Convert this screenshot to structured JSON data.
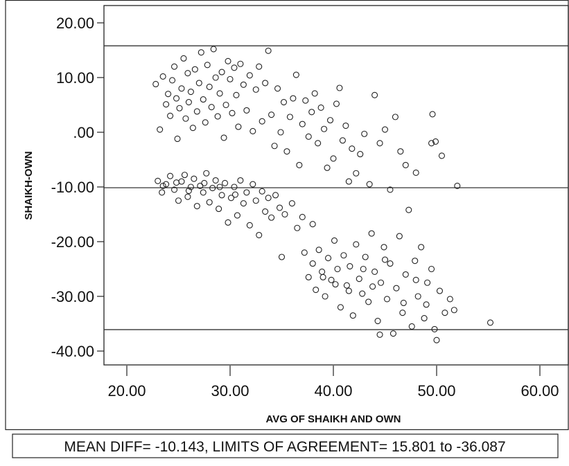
{
  "chart_data": {
    "type": "scatter",
    "xlabel": "AVG OF SHAIKH AND OWN",
    "ylabel": "SHAIKH-OWN",
    "xlim": [
      17.8,
      62
    ],
    "ylim": [
      -42.5,
      22.5
    ],
    "x_ticks": [
      20,
      30,
      40,
      50,
      60
    ],
    "x_tick_labels": [
      "20.00",
      "30.00",
      "40.00",
      "50.00",
      "60.00"
    ],
    "y_ticks": [
      20,
      10,
      0,
      -10,
      -20,
      -30,
      -40
    ],
    "y_tick_labels": [
      "20.00",
      "10.00",
      ".00",
      "-10.00",
      "-20.00",
      "-30.00",
      "-40.00"
    ],
    "reference_lines": [
      {
        "name": "upper limit of agreement",
        "y": 15.801
      },
      {
        "name": "mean difference",
        "y": -10.143
      },
      {
        "name": "lower limit of agreement",
        "y": -36.087
      }
    ],
    "annotation": "MEAN DIFF= -10.143, LIMITS OF AGREEMENT= 15.801 to -36.087",
    "grid": false,
    "points": [
      [
        22.8,
        8.8
      ],
      [
        23.2,
        0.5
      ],
      [
        23.5,
        10.2
      ],
      [
        23.8,
        5.1
      ],
      [
        24.0,
        7.0
      ],
      [
        24.2,
        3.0
      ],
      [
        24.4,
        9.5
      ],
      [
        24.6,
        12.0
      ],
      [
        24.8,
        6.2
      ],
      [
        24.9,
        -1.2
      ],
      [
        25.1,
        4.4
      ],
      [
        25.3,
        8.0
      ],
      [
        25.5,
        13.5
      ],
      [
        25.7,
        2.5
      ],
      [
        25.9,
        10.8
      ],
      [
        26.0,
        5.5
      ],
      [
        26.2,
        7.4
      ],
      [
        26.4,
        0.8
      ],
      [
        26.6,
        11.5
      ],
      [
        26.8,
        3.8
      ],
      [
        27.0,
        9.0
      ],
      [
        27.2,
        14.6
      ],
      [
        27.4,
        6.0
      ],
      [
        27.6,
        1.8
      ],
      [
        27.8,
        12.3
      ],
      [
        28.0,
        8.3
      ],
      [
        28.2,
        4.6
      ],
      [
        28.4,
        15.2
      ],
      [
        28.6,
        10.0
      ],
      [
        28.8,
        2.9
      ],
      [
        29.0,
        7.1
      ],
      [
        29.2,
        11.0
      ],
      [
        29.4,
        -1.0
      ],
      [
        29.6,
        5.0
      ],
      [
        29.8,
        13.0
      ],
      [
        30.0,
        9.7
      ],
      [
        30.2,
        3.5
      ],
      [
        30.4,
        11.8
      ],
      [
        30.6,
        6.8
      ],
      [
        30.8,
        1.0
      ],
      [
        31.0,
        12.5
      ],
      [
        31.3,
        8.7
      ],
      [
        31.6,
        4.0
      ],
      [
        31.9,
        10.4
      ],
      [
        32.2,
        0.2
      ],
      [
        32.5,
        7.8
      ],
      [
        32.8,
        12.0
      ],
      [
        33.1,
        2.0
      ],
      [
        33.4,
        9.0
      ],
      [
        33.7,
        14.9
      ],
      [
        34.0,
        3.2
      ],
      [
        34.3,
        -2.5
      ],
      [
        34.6,
        8.0
      ],
      [
        34.9,
        0.0
      ],
      [
        35.2,
        5.5
      ],
      [
        35.5,
        -3.5
      ],
      [
        35.8,
        2.8
      ],
      [
        36.1,
        6.2
      ],
      [
        36.4,
        10.5
      ],
      [
        36.7,
        -6.0
      ],
      [
        37.0,
        1.5
      ],
      [
        37.3,
        5.8
      ],
      [
        37.6,
        -0.8
      ],
      [
        37.9,
        3.7
      ],
      [
        38.2,
        7.1
      ],
      [
        38.5,
        -2.0
      ],
      [
        38.8,
        4.5
      ],
      [
        39.1,
        0.6
      ],
      [
        39.4,
        -6.5
      ],
      [
        39.7,
        2.2
      ],
      [
        40.0,
        -4.8
      ],
      [
        40.3,
        5.2
      ],
      [
        40.6,
        8.1
      ],
      [
        40.9,
        -1.5
      ],
      [
        41.2,
        1.2
      ],
      [
        41.5,
        -9.0
      ],
      [
        41.8,
        -3.0
      ],
      [
        42.2,
        -7.5
      ],
      [
        42.6,
        -4.0
      ],
      [
        43.0,
        -0.3
      ],
      [
        43.5,
        -9.5
      ],
      [
        44.0,
        6.8
      ],
      [
        44.5,
        -2.0
      ],
      [
        45.0,
        0.5
      ],
      [
        45.5,
        -10.5
      ],
      [
        46.0,
        2.8
      ],
      [
        46.5,
        -3.5
      ],
      [
        47.0,
        -6.0
      ],
      [
        48.0,
        -7.4
      ],
      [
        49.5,
        -2.0
      ],
      [
        49.6,
        3.3
      ],
      [
        49.9,
        -1.7
      ],
      [
        50.5,
        -4.3
      ],
      [
        52.0,
        -9.8
      ],
      [
        23.0,
        -8.9
      ],
      [
        23.4,
        -11.0
      ],
      [
        23.8,
        -9.5
      ],
      [
        24.2,
        -8.0
      ],
      [
        24.6,
        -10.5
      ],
      [
        25.0,
        -12.5
      ],
      [
        25.3,
        -9.0
      ],
      [
        25.6,
        -7.8
      ],
      [
        25.9,
        -11.8
      ],
      [
        26.2,
        -10.0
      ],
      [
        26.5,
        -8.5
      ],
      [
        26.8,
        -13.5
      ],
      [
        27.1,
        -9.8
      ],
      [
        27.4,
        -11.0
      ],
      [
        27.7,
        -7.5
      ],
      [
        28.0,
        -12.8
      ],
      [
        28.3,
        -10.2
      ],
      [
        28.6,
        -8.8
      ],
      [
        28.9,
        -14.0
      ],
      [
        29.2,
        -11.5
      ],
      [
        29.5,
        -9.3
      ],
      [
        29.8,
        -16.5
      ],
      [
        30.1,
        -12.0
      ],
      [
        30.4,
        -10.0
      ],
      [
        30.7,
        -15.2
      ],
      [
        31.0,
        -8.8
      ],
      [
        31.3,
        -13.0
      ],
      [
        31.6,
        -11.0
      ],
      [
        31.9,
        -17.0
      ],
      [
        32.2,
        -9.5
      ],
      [
        32.5,
        -12.5
      ],
      [
        32.8,
        -18.8
      ],
      [
        33.1,
        -10.8
      ],
      [
        33.4,
        -14.5
      ],
      [
        33.7,
        -12.0
      ],
      [
        34.0,
        -15.6
      ],
      [
        34.4,
        -11.5
      ],
      [
        34.8,
        -13.8
      ],
      [
        35.0,
        -22.8
      ],
      [
        35.3,
        -15.0
      ],
      [
        36.0,
        -13.0
      ],
      [
        36.5,
        -17.5
      ],
      [
        37.0,
        -15.5
      ],
      [
        38.0,
        -16.8
      ],
      [
        23.5,
        -9.8
      ],
      [
        24.8,
        -9.2
      ],
      [
        26.0,
        -10.7
      ],
      [
        27.5,
        -9.3
      ],
      [
        29.0,
        -10.0
      ],
      [
        30.5,
        -11.4
      ],
      [
        37.2,
        -22.0
      ],
      [
        37.6,
        -26.5
      ],
      [
        38.0,
        -24.0
      ],
      [
        38.3,
        -28.8
      ],
      [
        38.6,
        -21.5
      ],
      [
        38.9,
        -25.5
      ],
      [
        39.2,
        -30.0
      ],
      [
        39.5,
        -23.0
      ],
      [
        39.8,
        -27.0
      ],
      [
        40.1,
        -19.8
      ],
      [
        40.4,
        -25.0
      ],
      [
        40.7,
        -32.0
      ],
      [
        41.0,
        -22.5
      ],
      [
        41.3,
        -28.0
      ],
      [
        41.6,
        -24.5
      ],
      [
        41.9,
        -33.5
      ],
      [
        42.2,
        -20.5
      ],
      [
        42.5,
        -26.8
      ],
      [
        42.8,
        -29.5
      ],
      [
        43.1,
        -22.8
      ],
      [
        43.4,
        -31.0
      ],
      [
        43.7,
        -18.5
      ],
      [
        44.0,
        -25.5
      ],
      [
        44.3,
        -34.5
      ],
      [
        44.6,
        -27.5
      ],
      [
        44.9,
        -21.0
      ],
      [
        45.2,
        -30.5
      ],
      [
        45.5,
        -24.0
      ],
      [
        45.8,
        -36.8
      ],
      [
        46.1,
        -28.5
      ],
      [
        46.4,
        -19.0
      ],
      [
        46.7,
        -33.0
      ],
      [
        47.0,
        -26.0
      ],
      [
        47.3,
        -14.2
      ],
      [
        47.6,
        -35.5
      ],
      [
        47.9,
        -23.5
      ],
      [
        48.2,
        -30.0
      ],
      [
        48.5,
        -21.0
      ],
      [
        48.8,
        -34.0
      ],
      [
        49.1,
        -27.5
      ],
      [
        49.5,
        -25.0
      ],
      [
        49.8,
        -36.0
      ],
      [
        50.0,
        -38.0
      ],
      [
        50.3,
        -29.0
      ],
      [
        50.8,
        -33.0
      ],
      [
        51.3,
        -30.5
      ],
      [
        51.7,
        -32.5
      ],
      [
        55.2,
        -34.8
      ],
      [
        39.0,
        -26.5
      ],
      [
        40.2,
        -27.8
      ],
      [
        41.5,
        -29.0
      ],
      [
        42.9,
        -25.0
      ],
      [
        43.8,
        -28.2
      ],
      [
        45.0,
        -23.3
      ],
      [
        46.8,
        -31.2
      ],
      [
        48.0,
        -27.0
      ],
      [
        49.0,
        -31.5
      ],
      [
        44.5,
        -37.0
      ]
    ]
  }
}
